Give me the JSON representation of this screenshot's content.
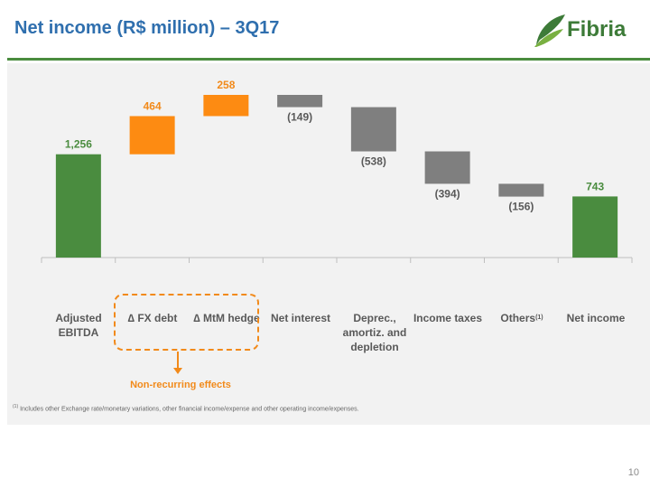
{
  "title": "Net income (R$ million) – 3Q17",
  "logo": {
    "text": "Fibria"
  },
  "colors": {
    "positive": "#4a8c3f",
    "orange": "#fd8b12",
    "negative": "#7f7f7f",
    "title": "#2f6fae"
  },
  "chart_data": {
    "type": "bar",
    "subtype": "waterfall",
    "categories": [
      "Adjusted EBITDA",
      "∆ FX debt",
      "∆ MtM hedge",
      "Net interest",
      "Deprec., amortiz. and depletion",
      "Income taxes",
      "Others",
      "Net income"
    ],
    "values": [
      1256,
      464,
      258,
      -149,
      -538,
      -394,
      -156,
      743
    ],
    "data_labels": [
      "1,256",
      "464",
      "258",
      "(149)",
      "(538)",
      "(394)",
      "(156)",
      "743"
    ],
    "bar_types": [
      "total",
      "nonrecurring",
      "nonrecurring",
      "decrease",
      "decrease",
      "decrease",
      "decrease",
      "total"
    ],
    "label_colors": [
      "#4a8c3f",
      "#f28a1a",
      "#f28a1a",
      "#595959",
      "#595959",
      "#595959",
      "#595959",
      "#4a8c3f"
    ],
    "group_annotation": "Non-recurring effects",
    "others_footnote_marker": "(1)",
    "ylim": [
      0,
      1978
    ]
  },
  "labels": {
    "adjusted_ebitda": "Adjusted EBITDA",
    "fx_debt": "∆ FX debt",
    "mtm_hedge": "∆ MtM hedge",
    "net_interest": "Net interest",
    "deprec": "Deprec., amortiz. and depletion",
    "income_taxes": "Income taxes",
    "others": "Others",
    "others_sup": "(1)",
    "net_income": "Net income"
  },
  "footnote": {
    "marker": "(1)",
    "text": "Includes other Exchange rate/monetary variations, other financial income/expense and other operating income/expenses."
  },
  "page_number": "10"
}
